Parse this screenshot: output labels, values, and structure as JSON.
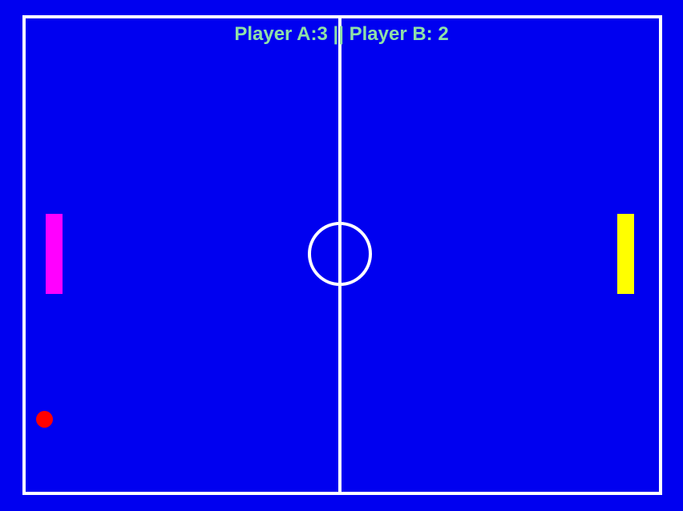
{
  "scoreboard": {
    "text": "Player A:3 || Player B: 2",
    "player_a_score": 3,
    "player_b_score": 2
  },
  "colors": {
    "background": "#0000f0",
    "lines": "#ffffff",
    "score_text": "#8fe0a8",
    "paddle_a": "#ff00ff",
    "paddle_b": "#ffff00",
    "ball": "#ff0000"
  }
}
